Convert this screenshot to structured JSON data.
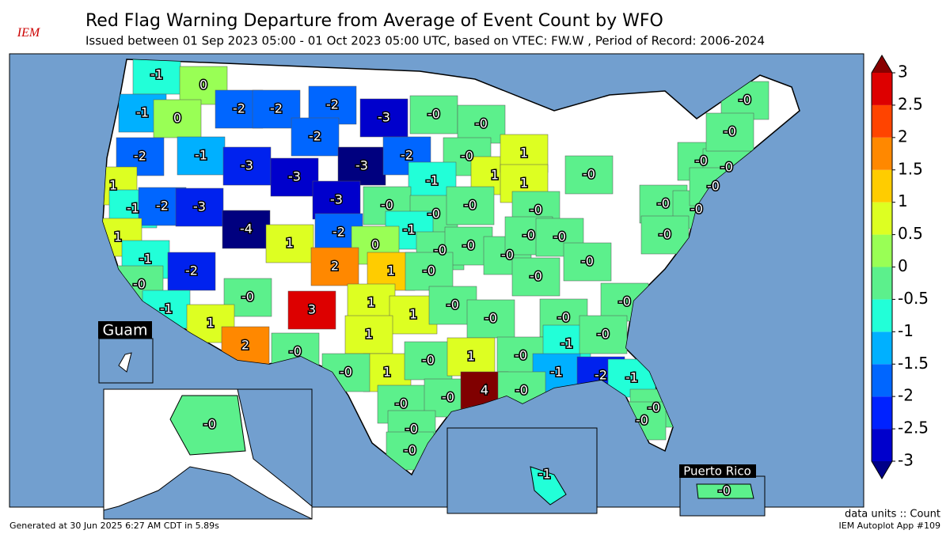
{
  "header": {
    "title": "Red Flag Warning Departure from Average of Event Count by WFO",
    "subtitle": "Issued between 01 Sep 2023 05:00 - 01 Oct 2023 05:00 UTC, based on VTEC: FW.W  , Period of Record: 2006-2024",
    "logo": "IEM"
  },
  "map": {
    "regions": [
      {
        "label": "-1",
        "color": "#22ffd8"
      },
      {
        "label": "0",
        "color": "#99ff55"
      },
      {
        "label": "-1",
        "color": "#00b0ff"
      },
      {
        "label": "0",
        "color": "#99ff55"
      },
      {
        "label": "-2",
        "color": "#0066ff"
      },
      {
        "label": "-2",
        "color": "#0066ff"
      },
      {
        "label": "-2",
        "color": "#0066ff"
      },
      {
        "label": "-3",
        "color": "#0000cc"
      },
      {
        "label": "-0",
        "color": "#5cf08c"
      },
      {
        "label": "-0",
        "color": "#5cf08c"
      },
      {
        "label": "-2",
        "color": "#0066ff"
      },
      {
        "label": "-1",
        "color": "#00b0ff"
      },
      {
        "label": "-3",
        "color": "#0022ee"
      },
      {
        "label": "-2",
        "color": "#0066ff"
      },
      {
        "label": "-3",
        "color": "#0000cc"
      },
      {
        "label": "-3",
        "color": "#00007f"
      },
      {
        "label": "-2",
        "color": "#0066ff"
      },
      {
        "label": "-0",
        "color": "#5cf08c"
      },
      {
        "label": "1",
        "color": "#ddff22"
      },
      {
        "label": "1",
        "color": "#ddff22"
      },
      {
        "label": "1",
        "color": "#ddff22"
      },
      {
        "label": "-1",
        "color": "#22ffd8"
      },
      {
        "label": "1",
        "color": "#ddff22"
      },
      {
        "label": "-1",
        "color": "#22ffd8"
      },
      {
        "label": "-2",
        "color": "#0066ff"
      },
      {
        "label": "-3",
        "color": "#0022ee"
      },
      {
        "label": "-3",
        "color": "#0000cc"
      },
      {
        "label": "-4",
        "color": "#00007f"
      },
      {
        "label": "-0",
        "color": "#5cf08c"
      },
      {
        "label": "-0",
        "color": "#5cf08c"
      },
      {
        "label": "-0",
        "color": "#5cf08c"
      },
      {
        "label": "-0",
        "color": "#5cf08c"
      },
      {
        "label": "-0",
        "color": "#5cf08c"
      },
      {
        "label": "-0",
        "color": "#5cf08c"
      },
      {
        "label": "-0",
        "color": "#5cf08c"
      },
      {
        "label": "-0",
        "color": "#5cf08c"
      },
      {
        "label": "-0",
        "color": "#5cf08c"
      },
      {
        "label": "-0",
        "color": "#5cf08c"
      },
      {
        "label": "-0",
        "color": "#5cf08c"
      },
      {
        "label": "-0",
        "color": "#5cf08c"
      },
      {
        "label": "-1",
        "color": "#22ffd8"
      },
      {
        "label": "-2",
        "color": "#0066ff"
      },
      {
        "label": "1",
        "color": "#ddff22"
      },
      {
        "label": "0",
        "color": "#99ff55"
      },
      {
        "label": "-0",
        "color": "#5cf08c"
      },
      {
        "label": "-0",
        "color": "#5cf08c"
      },
      {
        "label": "1",
        "color": "#ddff22"
      },
      {
        "label": "-1",
        "color": "#22ffd8"
      },
      {
        "label": "-2",
        "color": "#0022ee"
      },
      {
        "label": "2",
        "color": "#ff8800"
      },
      {
        "label": "1",
        "color": "#ffcc00"
      },
      {
        "label": "-0",
        "color": "#5cf08c"
      },
      {
        "label": "-0",
        "color": "#5cf08c"
      },
      {
        "label": "-0",
        "color": "#5cf08c"
      },
      {
        "label": "-0",
        "color": "#5cf08c"
      },
      {
        "label": "-0",
        "color": "#5cf08c"
      },
      {
        "label": "-0",
        "color": "#5cf08c"
      },
      {
        "label": "-0",
        "color": "#5cf08c"
      },
      {
        "label": "-0",
        "color": "#5cf08c"
      },
      {
        "label": "-0",
        "color": "#5cf08c"
      },
      {
        "label": "3",
        "color": "#dd0000"
      },
      {
        "label": "1",
        "color": "#ddff22"
      },
      {
        "label": "1",
        "color": "#ddff22"
      },
      {
        "label": "-0",
        "color": "#5cf08c"
      },
      {
        "label": "-0",
        "color": "#5cf08c"
      },
      {
        "label": "-0",
        "color": "#5cf08c"
      },
      {
        "label": "-0",
        "color": "#5cf08c"
      },
      {
        "label": "-1",
        "color": "#22ffd8"
      },
      {
        "label": "1",
        "color": "#ddff22"
      },
      {
        "label": "2",
        "color": "#ff8800"
      },
      {
        "label": "-0",
        "color": "#5cf08c"
      },
      {
        "label": "1",
        "color": "#ddff22"
      },
      {
        "label": "1",
        "color": "#ddff22"
      },
      {
        "label": "-0",
        "color": "#5cf08c"
      },
      {
        "label": "1",
        "color": "#ddff22"
      },
      {
        "label": "-0",
        "color": "#5cf08c"
      },
      {
        "label": "-1",
        "color": "#22ffd8"
      },
      {
        "label": "-0",
        "color": "#5cf08c"
      },
      {
        "label": "-1",
        "color": "#00b0ff"
      },
      {
        "label": "-2",
        "color": "#0022ee"
      },
      {
        "label": "-1",
        "color": "#22ffd8"
      },
      {
        "label": "-0",
        "color": "#5cf08c"
      },
      {
        "label": "-0",
        "color": "#5cf08c"
      },
      {
        "label": "-0",
        "color": "#5cf08c"
      },
      {
        "label": "4",
        "color": "#800000"
      },
      {
        "label": "-0",
        "color": "#5cf08c"
      },
      {
        "label": "-0",
        "color": "#5cf08c"
      },
      {
        "label": "-0",
        "color": "#5cf08c"
      },
      {
        "label": "-0",
        "color": "#5cf08c"
      },
      {
        "label": "-0",
        "color": "#5cf08c"
      },
      {
        "label": "-0",
        "color": "#5cf08c"
      },
      {
        "label": "-1",
        "color": "#22ffd8"
      },
      {
        "label": "-0",
        "color": "#5cf08c"
      }
    ],
    "insets": {
      "guam": "Guam",
      "puerto_rico": "Puerto Rico"
    }
  },
  "colorbar": {
    "lim": [
      -3,
      3
    ],
    "ticks": [
      -3,
      -2.5,
      -2,
      -1.5,
      -1,
      -0.5,
      0,
      0.5,
      1,
      1.5,
      2,
      2.5,
      3
    ],
    "colors": [
      "#0000cc",
      "#0022ff",
      "#0066ff",
      "#00b0ff",
      "#22ffd8",
      "#5cf08c",
      "#99ff55",
      "#ddff22",
      "#ffcc00",
      "#ff8800",
      "#ff4400",
      "#dd0000"
    ],
    "extend_colors": [
      "#000088",
      "#880000"
    ]
  },
  "footer": {
    "generated": "Generated at 30 Jun 2025 6:27 AM CDT in 5.89s",
    "units": "data units :: Count",
    "app": "IEM Autoplot App #109"
  }
}
